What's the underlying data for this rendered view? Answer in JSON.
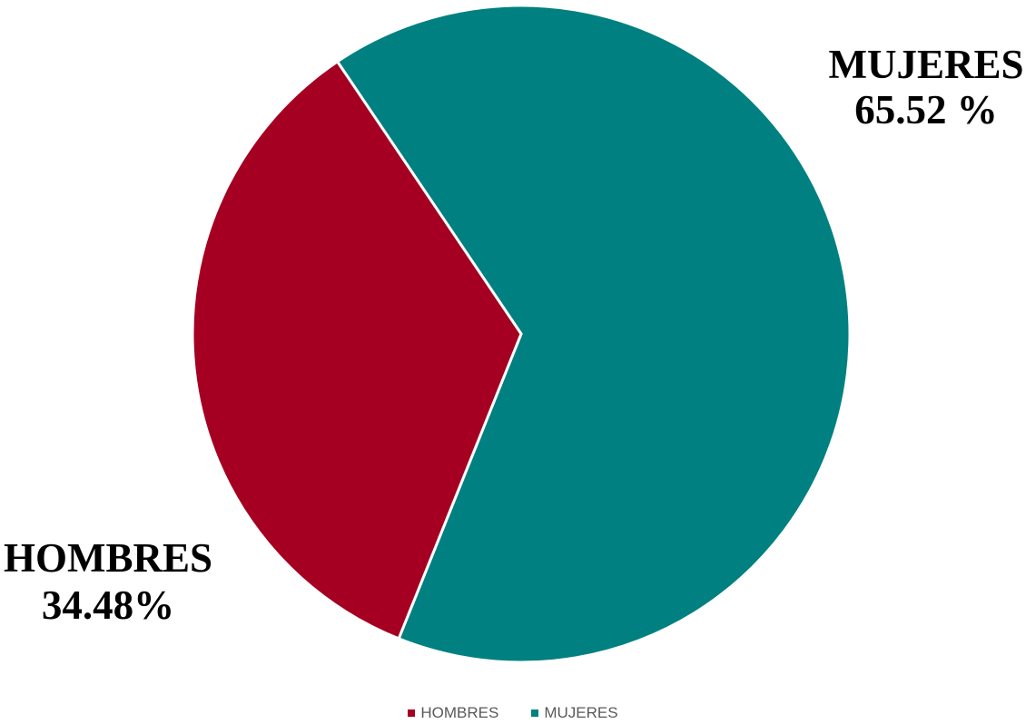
{
  "chart_data": {
    "type": "pie",
    "title": "",
    "categories": [
      "HOMBRES",
      "MUJERES"
    ],
    "values": [
      34.48,
      65.52
    ],
    "colors": [
      "#a50021",
      "#008080"
    ],
    "data_labels": [
      {
        "name": "HOMBRES",
        "value": "34.48%"
      },
      {
        "name": "MUJERES",
        "value": "65.52 %"
      }
    ],
    "legend": {
      "position": "bottom",
      "entries": [
        "HOMBRES",
        "MUJERES"
      ]
    }
  }
}
